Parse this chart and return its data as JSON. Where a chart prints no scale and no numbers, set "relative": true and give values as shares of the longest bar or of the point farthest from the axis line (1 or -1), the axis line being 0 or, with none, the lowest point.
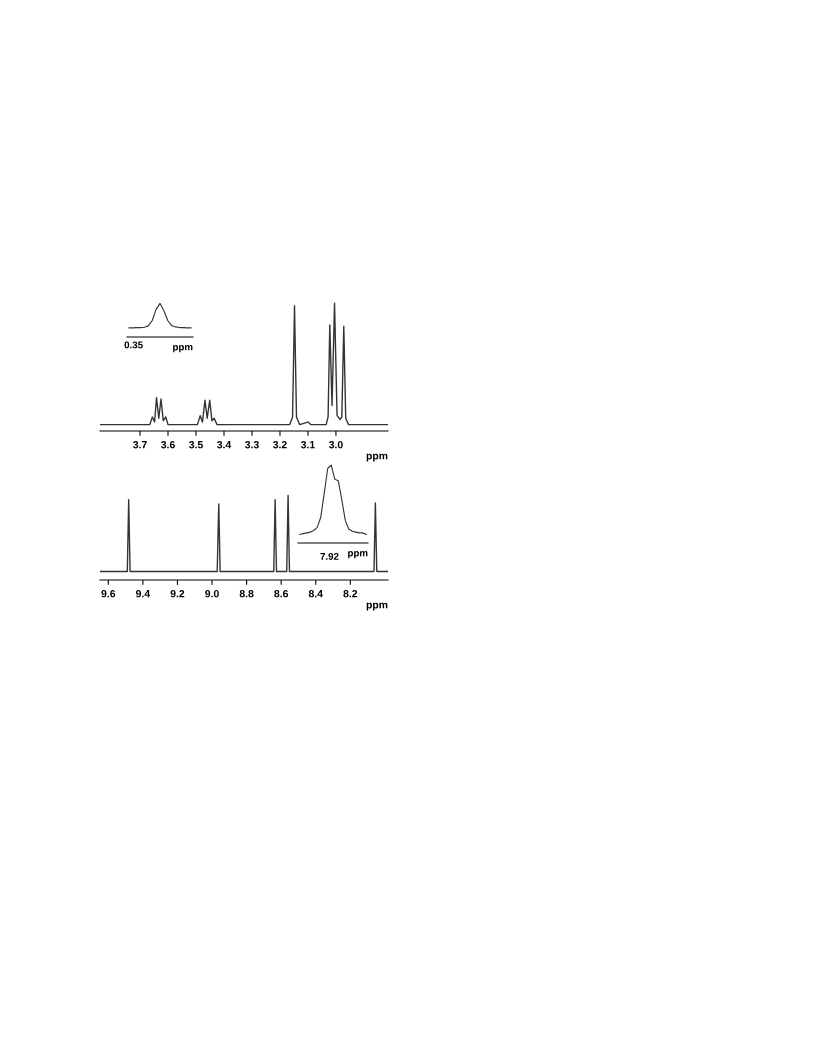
{
  "chart_data": [
    {
      "type": "line",
      "relative": true,
      "xlabel": "ppm",
      "xlim": [
        3.843,
        2.814
      ],
      "xticks": [
        3.7,
        3.6,
        3.5,
        3.4,
        3.3,
        3.2,
        3.1,
        {
          "value": 3.0,
          "label": "3.0"
        }
      ],
      "grid": false,
      "legend": false,
      "marker": "none",
      "line_style": "solid",
      "series": [
        {
          "color": "#333333",
          "x": [
            3.843,
            3.665,
            3.656,
            3.648,
            3.641,
            3.633,
            3.625,
            3.617,
            3.608,
            3.6,
            3.495,
            3.485,
            3.477,
            3.468,
            3.46,
            3.451,
            3.443,
            3.435,
            3.425,
            3.165,
            3.155,
            3.148,
            3.141,
            3.13,
            3.1,
            3.09,
            3.035,
            3.028,
            3.022,
            3.014,
            3.005,
            2.996,
            2.985,
            2.979,
            2.972,
            2.965,
            2.955,
            2.814
          ],
          "values": [
            0.05,
            0.05,
            0.11,
            0.07,
            0.26,
            0.1,
            0.25,
            0.08,
            0.11,
            0.05,
            0.05,
            0.12,
            0.07,
            0.24,
            0.1,
            0.24,
            0.08,
            0.1,
            0.05,
            0.05,
            0.11,
            0.98,
            0.11,
            0.05,
            0.07,
            0.05,
            0.05,
            0.11,
            0.83,
            0.2,
            1.0,
            0.12,
            0.09,
            0.11,
            0.82,
            0.1,
            0.05,
            0.05
          ]
        }
      ]
    },
    {
      "type": "line",
      "relative": true,
      "xlabel": "ppm",
      "annotations": [
        "0.35"
      ],
      "grid": false,
      "legend": false,
      "marker": "none",
      "line_style": "solid",
      "categories": [
        null,
        null,
        null,
        null,
        null,
        null,
        null,
        null,
        null,
        null,
        null,
        null,
        null,
        null,
        null,
        null,
        null
      ],
      "series": [
        {
          "color": "#333333",
          "values": [
            0.27,
            0.27,
            0.28,
            0.28,
            0.29,
            0.33,
            0.49,
            0.82,
            1.0,
            0.78,
            0.49,
            0.34,
            0.3,
            0.28,
            0.28,
            0.27,
            0.27
          ]
        }
      ]
    },
    {
      "type": "line",
      "relative": true,
      "xlabel": "ppm",
      "xlim": [
        9.648,
        7.982
      ],
      "xticks": [
        9.6,
        9.4,
        9.2,
        {
          "value": 9.0,
          "label": "9.0"
        },
        8.8,
        8.6,
        8.4,
        8.2
      ],
      "grid": false,
      "legend": false,
      "marker": "none",
      "line_style": "solid",
      "series": [
        {
          "color": "#333333",
          "x": [
            9.648,
            9.49,
            9.482,
            9.474,
            8.97,
            8.961,
            8.953,
            8.643,
            8.635,
            8.627,
            8.568,
            8.56,
            8.552,
            8.063,
            8.055,
            8.047,
            7.982
          ],
          "values": [
            0.1,
            0.1,
            0.95,
            0.1,
            0.1,
            0.9,
            0.1,
            0.1,
            0.95,
            0.1,
            0.1,
            1.0,
            0.1,
            0.1,
            0.91,
            0.1,
            0.1
          ]
        }
      ]
    },
    {
      "type": "line",
      "relative": true,
      "xlabel": "ppm",
      "annotations": [
        "7.92"
      ],
      "grid": false,
      "legend": false,
      "marker": "none",
      "line_style": "solid",
      "categories": [
        null,
        null,
        null,
        null,
        null,
        null,
        null,
        null,
        null,
        null,
        null,
        null,
        null,
        null,
        null,
        null,
        null,
        null,
        null,
        null
      ],
      "series": [
        {
          "color": "#333333",
          "values": [
            0.11,
            0.12,
            0.13,
            0.14,
            0.16,
            0.2,
            0.33,
            0.64,
            0.96,
            1.0,
            0.82,
            0.8,
            0.56,
            0.29,
            0.18,
            0.15,
            0.14,
            0.13,
            0.13,
            0.11
          ]
        }
      ]
    }
  ]
}
